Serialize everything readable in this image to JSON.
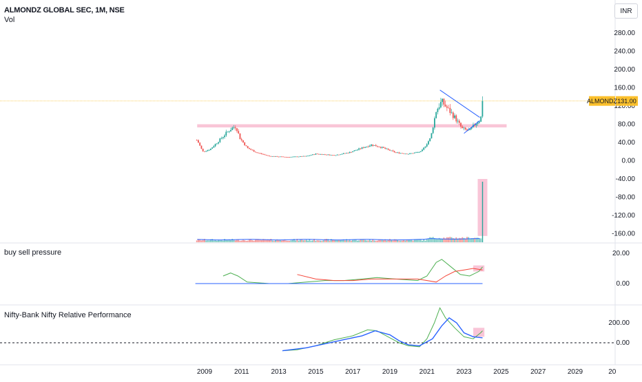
{
  "header": {
    "title": "ALMONDZ GLOBAL SEC, 1M, NSE",
    "subtitle": "Vol",
    "currency": "INR"
  },
  "panes": {
    "pressure_title": "buy sell pressure",
    "relative_title": "Nifty-Bank Nifty Relative Performance"
  },
  "price_label": {
    "symbol": "ALMONDZ",
    "value": "131.00"
  },
  "colors": {
    "up": "#26a69a",
    "down": "#ef5350",
    "zone": "#f8bbd0",
    "trendline": "#2962ff",
    "green_line": "#4caf50",
    "red_line": "#f44336",
    "blue_line": "#2962ff",
    "price_line": "#fbc02d"
  },
  "chart_data": [
    {
      "type": "candlestick",
      "title": "ALMONDZ GLOBAL SEC, 1M, NSE",
      "x_ticks": [
        "2009",
        "2011",
        "2013",
        "2015",
        "2017",
        "2019",
        "2021",
        "2023",
        "2025",
        "2027",
        "2029",
        "20"
      ],
      "y_ticks": [
        "280.00",
        "240.00",
        "200.00",
        "160.00",
        "120.00",
        "80.00",
        "40.00",
        "0.00",
        "-40.00",
        "-80.00",
        "-120.00",
        "-160.00"
      ],
      "ylim": [
        -170,
        300
      ],
      "last_price": 131.0,
      "close_anchors": [
        [
          2008.6,
          45
        ],
        [
          2008.9,
          20
        ],
        [
          2009.3,
          25
        ],
        [
          2009.8,
          45
        ],
        [
          2010.2,
          62
        ],
        [
          2010.5,
          72
        ],
        [
          2010.7,
          75
        ],
        [
          2010.9,
          50
        ],
        [
          2011.3,
          28
        ],
        [
          2011.8,
          18
        ],
        [
          2012.5,
          10
        ],
        [
          2013.5,
          8
        ],
        [
          2014.5,
          10
        ],
        [
          2015.0,
          15
        ],
        [
          2016.0,
          12
        ],
        [
          2016.8,
          18
        ],
        [
          2017.5,
          28
        ],
        [
          2018.0,
          35
        ],
        [
          2018.5,
          30
        ],
        [
          2019.3,
          18
        ],
        [
          2020.0,
          15
        ],
        [
          2020.7,
          20
        ],
        [
          2021.2,
          50
        ],
        [
          2021.5,
          110
        ],
        [
          2021.8,
          130
        ],
        [
          2022.1,
          115
        ],
        [
          2022.5,
          95
        ],
        [
          2022.9,
          70
        ],
        [
          2023.3,
          65
        ],
        [
          2023.7,
          85
        ],
        [
          2023.9,
          90
        ],
        [
          2024.0,
          131
        ]
      ],
      "zones": [
        {
          "x": [
            2008.6,
            2025.3
          ],
          "y": [
            73,
            80
          ]
        }
      ],
      "trendlines": [
        {
          "from": [
            2021.7,
            155
          ],
          "to": [
            2023.85,
            95
          ]
        },
        {
          "from": [
            2023.0,
            60
          ],
          "to": [
            2023.85,
            88
          ]
        }
      ],
      "volume": {
        "ma_color": "#2962ff",
        "highlight_spike": {
          "x": 2024.0,
          "range": [
            -40,
            -165
          ]
        }
      }
    },
    {
      "type": "line",
      "title": "buy sell pressure",
      "y_ticks": [
        "20.00",
        "0.00"
      ],
      "series": [
        {
          "color": "#4caf50",
          "points": [
            [
              2010.0,
              5
            ],
            [
              2010.4,
              7
            ],
            [
              2010.8,
              5
            ],
            [
              2011.3,
              1
            ],
            [
              2012.5,
              0
            ],
            [
              2013.5,
              0
            ],
            [
              2014.5,
              1
            ],
            [
              2015.5,
              2
            ],
            [
              2016.5,
              2
            ],
            [
              2017.5,
              3
            ],
            [
              2018.3,
              4
            ],
            [
              2019.3,
              3
            ],
            [
              2020.5,
              2
            ],
            [
              2021.0,
              5
            ],
            [
              2021.5,
              14
            ],
            [
              2021.8,
              16
            ],
            [
              2022.3,
              11
            ],
            [
              2022.8,
              6
            ],
            [
              2023.3,
              5
            ],
            [
              2023.8,
              8
            ],
            [
              2024.0,
              11
            ]
          ]
        },
        {
          "color": "#f44336",
          "points": [
            [
              2014.0,
              6
            ],
            [
              2015.0,
              3
            ],
            [
              2016.0,
              2
            ],
            [
              2017.0,
              2
            ],
            [
              2018.0,
              3
            ],
            [
              2019.0,
              3
            ],
            [
              2020.5,
              3
            ],
            [
              2021.5,
              1
            ],
            [
              2022.0,
              5
            ],
            [
              2022.5,
              8
            ],
            [
              2023.0,
              9
            ],
            [
              2023.5,
              10
            ],
            [
              2024.0,
              9
            ]
          ]
        },
        {
          "color": "#2962ff",
          "points": [
            [
              2008.5,
              0
            ],
            [
              2024.0,
              0
            ]
          ]
        }
      ],
      "highlight": {
        "x": [
          2023.5,
          2024.1
        ],
        "y": [
          8,
          12
        ]
      }
    },
    {
      "type": "line",
      "title": "Nifty-Bank Nifty Relative Performance",
      "y_ticks": [
        "200.00",
        "0.00"
      ],
      "series": [
        {
          "color": "#4caf50",
          "points": [
            [
              2013.2,
              -80
            ],
            [
              2014.0,
              -70
            ],
            [
              2015.0,
              -30
            ],
            [
              2016.0,
              30
            ],
            [
              2017.0,
              70
            ],
            [
              2017.8,
              130
            ],
            [
              2018.3,
              120
            ],
            [
              2019.0,
              50
            ],
            [
              2019.5,
              0
            ],
            [
              2020.0,
              -30
            ],
            [
              2020.6,
              -40
            ],
            [
              2021.0,
              40
            ],
            [
              2021.4,
              200
            ],
            [
              2021.7,
              350
            ],
            [
              2022.0,
              250
            ],
            [
              2022.5,
              150
            ],
            [
              2023.0,
              60
            ],
            [
              2023.5,
              40
            ],
            [
              2023.9,
              100
            ],
            [
              2024.0,
              120
            ]
          ]
        },
        {
          "color": "#2962ff",
          "points": [
            [
              2013.2,
              -80
            ],
            [
              2014.5,
              -50
            ],
            [
              2015.5,
              -10
            ],
            [
              2016.5,
              30
            ],
            [
              2017.5,
              70
            ],
            [
              2018.2,
              120
            ],
            [
              2019.0,
              80
            ],
            [
              2019.5,
              20
            ],
            [
              2020.0,
              -20
            ],
            [
              2020.6,
              -30
            ],
            [
              2021.3,
              40
            ],
            [
              2021.8,
              170
            ],
            [
              2022.2,
              250
            ],
            [
              2022.6,
              200
            ],
            [
              2023.0,
              100
            ],
            [
              2023.5,
              60
            ],
            [
              2024.0,
              50
            ]
          ]
        }
      ],
      "baseline": 0,
      "highlight": {
        "x": [
          2023.5,
          2024.1
        ],
        "y": [
          60,
          150
        ]
      }
    }
  ]
}
